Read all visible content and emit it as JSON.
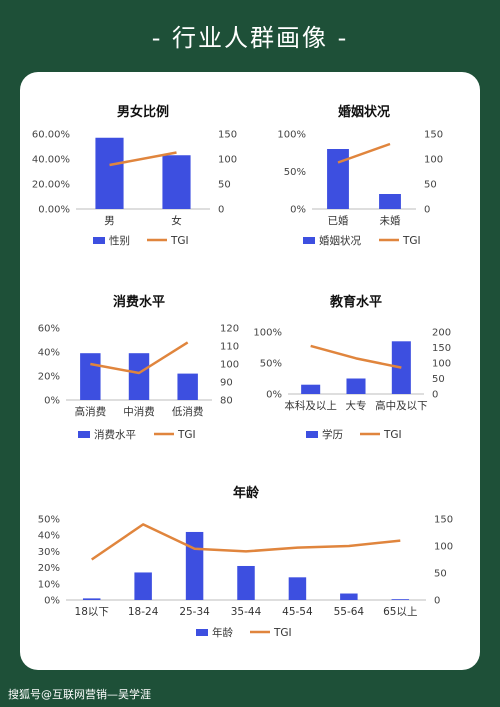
{
  "page": {
    "title": "- 行业人群画像 -",
    "watermark": "搜狐号@互联网营销—吴学涯"
  },
  "colors": {
    "bar": "#3d4fe0",
    "line": "#e0853d",
    "background": "#1e5038"
  },
  "chart_data": [
    {
      "type": "bar",
      "title": "男女比例",
      "categories": [
        "男",
        "女"
      ],
      "series": [
        {
          "name": "性别",
          "kind": "bar",
          "axis": "left",
          "values": [
            57,
            43
          ]
        },
        {
          "name": "TGI",
          "kind": "line",
          "axis": "right",
          "values": [
            88,
            113
          ]
        }
      ],
      "left_axis": {
        "ylim": [
          0,
          60
        ],
        "ticks": [
          "0.00%",
          "20.00%",
          "40.00%",
          "60.00%"
        ]
      },
      "right_axis": {
        "ylim": [
          0,
          150
        ],
        "ticks": [
          "0",
          "50",
          "100",
          "150"
        ]
      },
      "legend": "bottom"
    },
    {
      "type": "bar",
      "title": "婚姻状况",
      "categories": [
        "已婚",
        "未婚"
      ],
      "series": [
        {
          "name": "婚姻状况",
          "kind": "bar",
          "axis": "left",
          "values": [
            80,
            20
          ]
        },
        {
          "name": "TGI",
          "kind": "line",
          "axis": "right",
          "values": [
            93,
            130
          ]
        }
      ],
      "left_axis": {
        "ylim": [
          0,
          100
        ],
        "ticks": [
          "0%",
          "50%",
          "100%"
        ]
      },
      "right_axis": {
        "ylim": [
          0,
          150
        ],
        "ticks": [
          "0",
          "50",
          "100",
          "150"
        ]
      },
      "legend": "bottom"
    },
    {
      "type": "bar",
      "title": "消费水平",
      "categories": [
        "高消费",
        "中消费",
        "低消费"
      ],
      "series": [
        {
          "name": "消费水平",
          "kind": "bar",
          "axis": "left",
          "values": [
            39,
            39,
            22
          ]
        },
        {
          "name": "TGI",
          "kind": "line",
          "axis": "right",
          "values": [
            100,
            95,
            112
          ]
        }
      ],
      "left_axis": {
        "ylim": [
          0,
          60
        ],
        "ticks": [
          "0%",
          "20%",
          "40%",
          "60%"
        ]
      },
      "right_axis": {
        "ylim": [
          80,
          120
        ],
        "ticks": [
          "80",
          "90",
          "100",
          "110",
          "120"
        ]
      },
      "legend": "bottom"
    },
    {
      "type": "bar",
      "title": "教育水平",
      "categories": [
        "本科及以上",
        "大专",
        "高中及以下"
      ],
      "series": [
        {
          "name": "学历",
          "kind": "bar",
          "axis": "left",
          "values": [
            15,
            25,
            85
          ]
        },
        {
          "name": "TGI",
          "kind": "line",
          "axis": "right",
          "values": [
            155,
            115,
            85
          ]
        }
      ],
      "left_axis": {
        "ylim": [
          0,
          100
        ],
        "ticks": [
          "0%",
          "50%",
          "100%"
        ]
      },
      "right_axis": {
        "ylim": [
          0,
          200
        ],
        "ticks": [
          "0",
          "50",
          "100",
          "150",
          "200"
        ]
      },
      "legend": "bottom"
    },
    {
      "type": "bar",
      "title": "年龄",
      "categories": [
        "18以下",
        "18-24",
        "25-34",
        "35-44",
        "45-54",
        "55-64",
        "65以上"
      ],
      "series": [
        {
          "name": "年龄",
          "kind": "bar",
          "axis": "left",
          "values": [
            1,
            17,
            42,
            21,
            14,
            4,
            0.5
          ]
        },
        {
          "name": "TGI",
          "kind": "line",
          "axis": "right",
          "values": [
            75,
            140,
            95,
            90,
            97,
            100,
            110
          ]
        }
      ],
      "left_axis": {
        "ylim": [
          0,
          50
        ],
        "ticks": [
          "0%",
          "10%",
          "20%",
          "30%",
          "40%",
          "50%"
        ]
      },
      "right_axis": {
        "ylim": [
          0,
          150
        ],
        "ticks": [
          "0",
          "50",
          "100",
          "150"
        ]
      },
      "legend": "bottom"
    }
  ]
}
